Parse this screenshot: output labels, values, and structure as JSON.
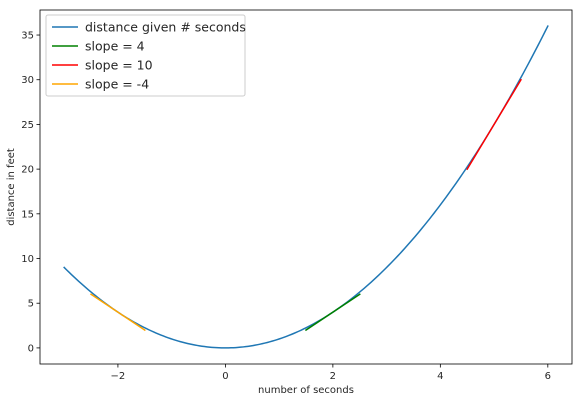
{
  "chart_data": {
    "type": "line",
    "title": "",
    "xlabel": "number of seconds",
    "ylabel": "distance in feet",
    "xlim": [
      -3.45,
      6.45
    ],
    "ylim": [
      -1.8,
      37.8
    ],
    "xticks": [
      -2,
      0,
      2,
      4,
      6
    ],
    "xtick_labels": [
      "−2",
      "0",
      "2",
      "4",
      "6"
    ],
    "yticks": [
      0,
      5,
      10,
      15,
      20,
      25,
      30,
      35
    ],
    "ytick_labels": [
      "0",
      "5",
      "10",
      "15",
      "20",
      "25",
      "30",
      "35"
    ],
    "grid": false,
    "legend_position": "top-left",
    "series": [
      {
        "name": "distance given # seconds",
        "color": "#1f77b4",
        "function": "x^2",
        "x_range": [
          -3,
          6
        ]
      },
      {
        "name": "slope = 4",
        "color": "#008000",
        "x": [
          1.5,
          2.5
        ],
        "y": [
          2,
          6
        ]
      },
      {
        "name": "slope = 10",
        "color": "#ff0000",
        "x": [
          4.5,
          5.5
        ],
        "y": [
          20,
          30
        ]
      },
      {
        "name": "slope = -4",
        "color": "#ffa500",
        "x": [
          -2.5,
          -1.5
        ],
        "y": [
          6,
          2
        ]
      }
    ]
  }
}
